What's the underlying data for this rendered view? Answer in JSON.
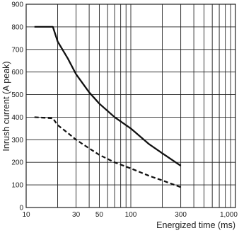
{
  "chart_data": {
    "type": "line",
    "title": "",
    "xlabel": "Energized time (ms)",
    "ylabel": "Inrush current (A peak)",
    "x_scale": "log",
    "xlim": [
      10,
      1000
    ],
    "ylim": [
      0,
      900
    ],
    "grid": true,
    "x_tick_labels": [
      {
        "value": 10,
        "label": "10"
      },
      {
        "value": 30,
        "label": "30"
      },
      {
        "value": 50,
        "label": "50"
      },
      {
        "value": 100,
        "label": "100"
      },
      {
        "value": 300,
        "label": "300"
      },
      {
        "value": 1000,
        "label": "1,000"
      }
    ],
    "y_ticks": [
      0,
      100,
      200,
      300,
      400,
      500,
      600,
      700,
      800,
      900
    ],
    "series": [
      {
        "style": "solid",
        "x": [
          12,
          18,
          20,
          25,
          30,
          40,
          50,
          70,
          100,
          150,
          200,
          300
        ],
        "y": [
          800,
          800,
          735,
          660,
          590,
          510,
          460,
          400,
          350,
          280,
          240,
          185
        ]
      },
      {
        "style": "dashed",
        "x": [
          12,
          18,
          20,
          25,
          30,
          40,
          50,
          70,
          100,
          150,
          200,
          300
        ],
        "y": [
          400,
          395,
          365,
          330,
          300,
          262,
          233,
          200,
          173,
          140,
          120,
          90
        ]
      }
    ]
  }
}
